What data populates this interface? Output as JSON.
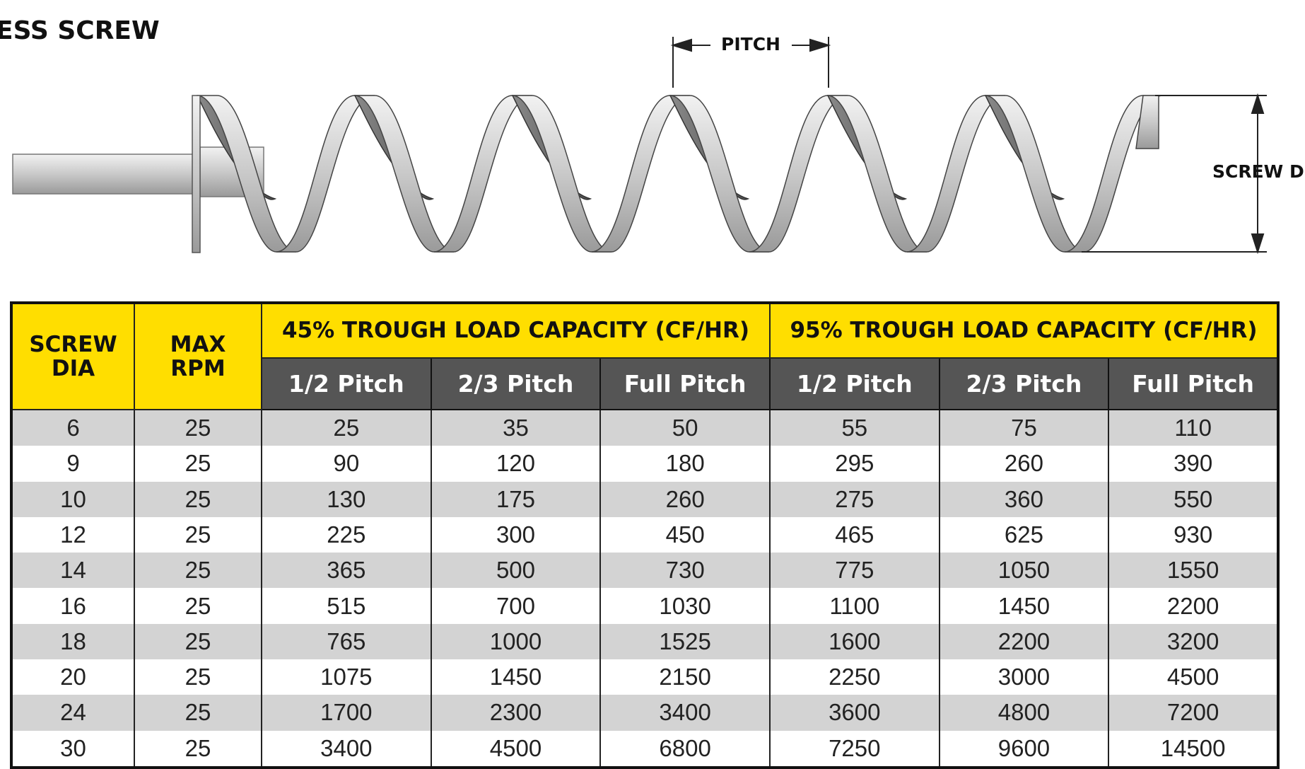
{
  "header": {
    "title": "ESS SCREW"
  },
  "diagram": {
    "pitch_label": "PITCH",
    "diameter_label": "SCREW DIA"
  },
  "table": {
    "columns": [
      "SCREW DIA",
      "MAX RPM"
    ],
    "groups": [
      "45% TROUGH LOAD CAPACITY (CF/HR)",
      "95% TROUGH LOAD CAPACITY (CF/HR)"
    ],
    "subcolumns": [
      "1/2 Pitch",
      "2/3 Pitch",
      "Full Pitch",
      "1/2 Pitch",
      "2/3 Pitch",
      "Full Pitch"
    ],
    "rows": [
      [
        "6",
        "25",
        "25",
        "35",
        "50",
        "55",
        "75",
        "110"
      ],
      [
        "9",
        "25",
        "90",
        "120",
        "180",
        "295",
        "260",
        "390"
      ],
      [
        "10",
        "25",
        "130",
        "175",
        "260",
        "275",
        "360",
        "550"
      ],
      [
        "12",
        "25",
        "225",
        "300",
        "450",
        "465",
        "625",
        "930"
      ],
      [
        "14",
        "25",
        "365",
        "500",
        "730",
        "775",
        "1050",
        "1550"
      ],
      [
        "16",
        "25",
        "515",
        "700",
        "1030",
        "1100",
        "1450",
        "2200"
      ],
      [
        "18",
        "25",
        "765",
        "1000",
        "1525",
        "1600",
        "2200",
        "3200"
      ],
      [
        "20",
        "25",
        "1075",
        "1450",
        "2150",
        "2250",
        "3000",
        "4500"
      ],
      [
        "24",
        "25",
        "1700",
        "2300",
        "3400",
        "3600",
        "4800",
        "7200"
      ],
      [
        "30",
        "25",
        "3400",
        "4500",
        "6800",
        "7250",
        "9600",
        "14500"
      ]
    ]
  }
}
